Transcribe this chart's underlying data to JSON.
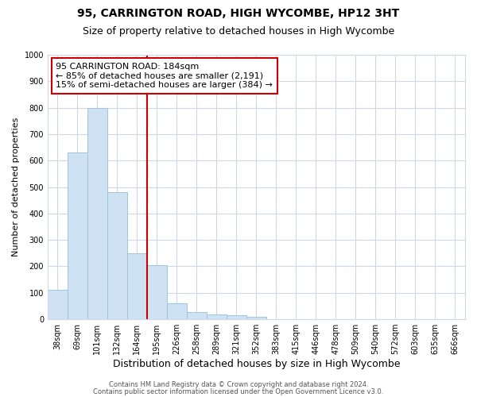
{
  "title1": "95, CARRINGTON ROAD, HIGH WYCOMBE, HP12 3HT",
  "title2": "Size of property relative to detached houses in High Wycombe",
  "xlabel": "Distribution of detached houses by size in High Wycombe",
  "ylabel": "Number of detached properties",
  "bar_values": [
    110,
    630,
    800,
    480,
    250,
    205,
    60,
    28,
    18,
    15,
    10,
    0,
    0,
    0,
    0,
    0,
    0,
    0,
    0,
    0
  ],
  "bar_labels": [
    "38sqm",
    "69sqm",
    "101sqm",
    "132sqm",
    "164sqm",
    "195sqm",
    "226sqm",
    "258sqm",
    "289sqm",
    "321sqm",
    "352sqm",
    "383sqm",
    "415sqm",
    "446sqm",
    "478sqm",
    "509sqm",
    "540sqm",
    "572sqm",
    "603sqm",
    "635sqm",
    "666sqm"
  ],
  "bar_color": "#cfe2f3",
  "bar_edge_color": "#9ec6e0",
  "red_line_x": 4.5,
  "annotation_title": "95 CARRINGTON ROAD: 184sqm",
  "annotation_line1": "← 85% of detached houses are smaller (2,191)",
  "annotation_line2": "15% of semi-detached houses are larger (384) →",
  "annotation_box_color": "#ffffff",
  "annotation_box_edge_color": "#cc0000",
  "red_line_color": "#cc0000",
  "ylim": [
    0,
    1000
  ],
  "yticks": [
    0,
    100,
    200,
    300,
    400,
    500,
    600,
    700,
    800,
    900,
    1000
  ],
  "footer1": "Contains HM Land Registry data © Crown copyright and database right 2024.",
  "footer2": "Contains public sector information licensed under the Open Government Licence v3.0.",
  "bg_color": "#ffffff",
  "grid_color": "#d0d8e8"
}
